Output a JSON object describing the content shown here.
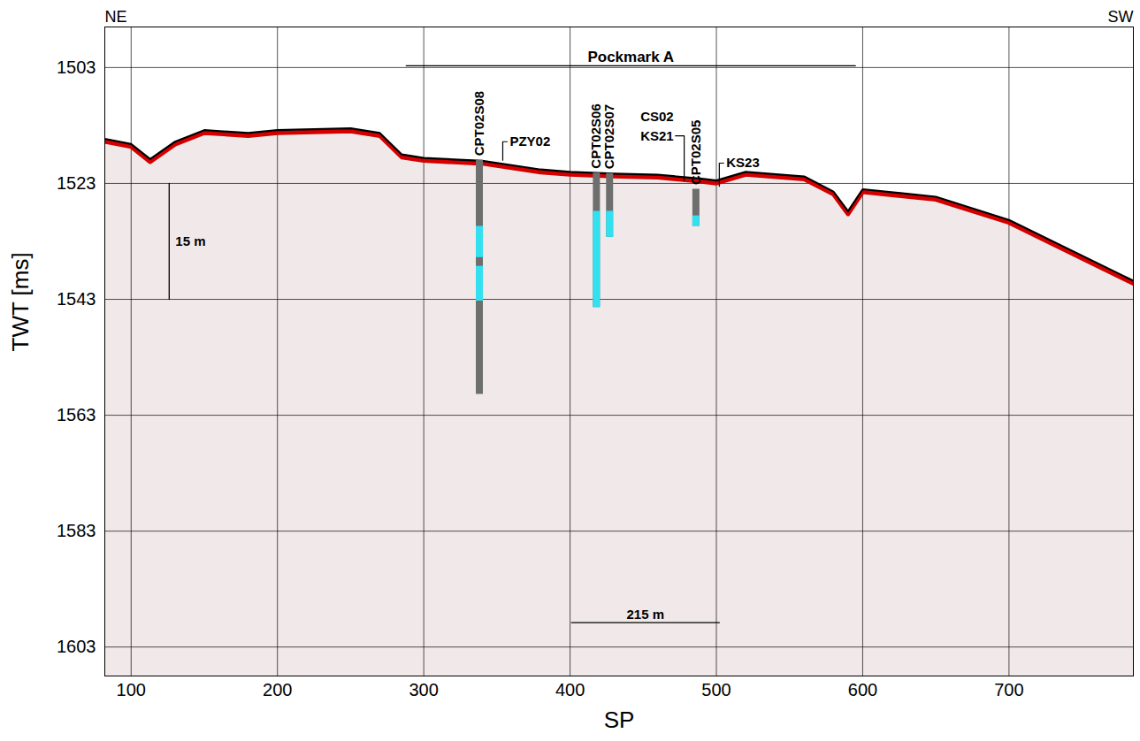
{
  "chart_data": {
    "type": "line",
    "corner_labels": {
      "left": "NE",
      "right": "SW"
    },
    "x_label": "SP",
    "y_label": "TWT [ms]",
    "xlim": [
      82,
      785
    ],
    "ylim": [
      1608,
      1496
    ],
    "xticks": [
      100,
      200,
      300,
      400,
      500,
      600,
      700
    ],
    "yticks": [
      1503,
      1523,
      1543,
      1563,
      1583,
      1603
    ],
    "grid": true,
    "color": "#000000",
    "x": [
      82,
      100,
      113,
      130,
      150,
      180,
      200,
      250,
      270,
      285,
      300,
      340,
      380,
      400,
      430,
      460,
      490,
      500,
      520,
      560,
      580,
      590,
      600,
      650,
      700,
      785
    ],
    "values": [
      1515.3,
      1516.2,
      1518.8,
      1515.8,
      1513.8,
      1514.3,
      1513.8,
      1513.5,
      1514.3,
      1518,
      1518.6,
      1519.1,
      1520.6,
      1521,
      1521.3,
      1521.5,
      1522.2,
      1522.5,
      1521,
      1521.8,
      1524.4,
      1527.8,
      1524,
      1525.3,
      1529.3,
      1539.8
    ],
    "boreholes": [
      {
        "label": "CPT02S08",
        "x": 338,
        "top": 1519,
        "base": 1559.4,
        "cyan": [
          [
            1530.4,
            1535.8
          ],
          [
            1537.3,
            1543.3
          ]
        ]
      },
      {
        "label": "CPT02S06",
        "x": 418,
        "top": 1521.2,
        "base": 1544.4,
        "cyan": [
          [
            1527.8,
            1544.4
          ]
        ]
      },
      {
        "label": "CPT02S07",
        "x": 427,
        "top": 1521.3,
        "base": 1532.3,
        "cyan": [
          [
            1527.8,
            1532.3
          ]
        ]
      },
      {
        "label": "CPT02S05",
        "x": 486,
        "top": 1524,
        "base": 1530.4,
        "cyan": [
          [
            1528.6,
            1530.4
          ]
        ]
      }
    ],
    "annotations": [
      {
        "text": "PZY02",
        "x": 357,
        "y": 1515.8,
        "point": [
          354,
          1519
        ]
      },
      {
        "text": "CS02",
        "x": 472,
        "y": 1511.5
      },
      {
        "text": "KS21",
        "x": 472,
        "y": 1514.8,
        "point": [
          478,
          1522.5
        ]
      },
      {
        "text": "KS23",
        "x": 505,
        "y": 1519.5,
        "point": [
          502,
          1523.5
        ]
      }
    ],
    "bracket": {
      "label": "Pockmark A",
      "x": [
        288,
        595
      ],
      "y": 1502.7
    },
    "scale_bars": [
      {
        "label": "15 m",
        "x": [
          126,
          126
        ],
        "y": [
          1523,
          1543
        ]
      },
      {
        "label": "215 m",
        "x": [
          401,
          502
        ],
        "y": [
          1598.8,
          1598.8
        ]
      }
    ]
  }
}
